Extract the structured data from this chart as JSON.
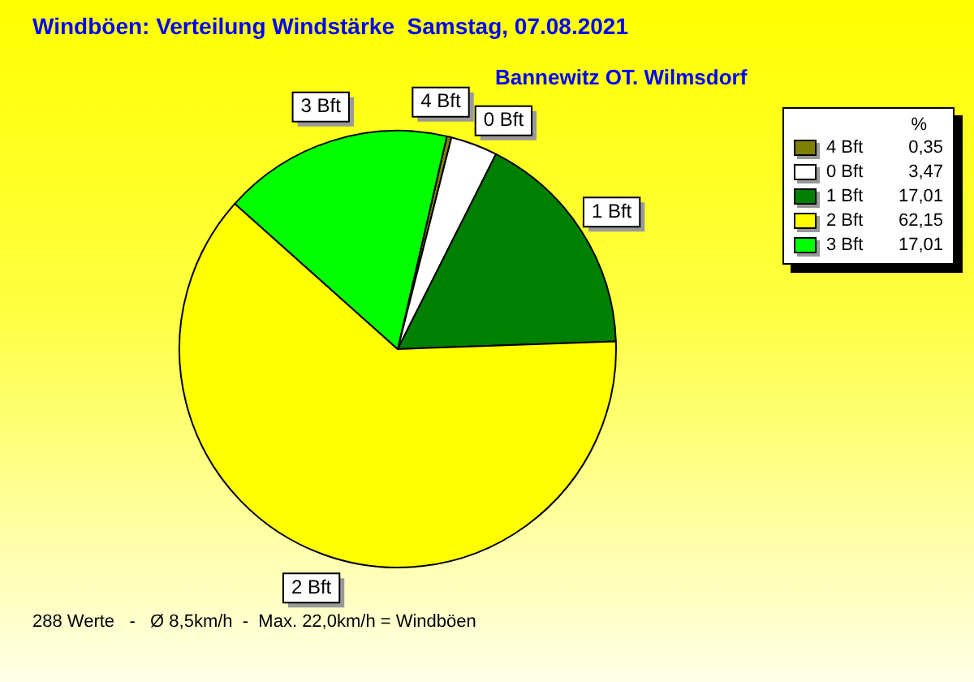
{
  "chart_data": {
    "type": "pie",
    "title": "Windböen: Verteilung Windstärke  Samstag, 07.08.2021",
    "subtitle": "Bannewitz OT. Wilmsdorf",
    "legend_title": "%",
    "categories": [
      "4 Bft",
      "0 Bft",
      "1 Bft",
      "2 Bft",
      "3 Bft"
    ],
    "values": [
      0.35,
      3.47,
      17.01,
      62.15,
      17.01
    ],
    "colors": [
      "#808000",
      "#ffffff",
      "#008000",
      "#ffff00",
      "#00ff00"
    ],
    "value_labels": [
      "0,35",
      "3,47",
      "17,01",
      "62,15",
      "17,01"
    ],
    "legend": "top right",
    "annotations": [
      "288 Werte   -   Ø 8,5km/h  -  Max. 22,0km/h = Windböen"
    ]
  }
}
